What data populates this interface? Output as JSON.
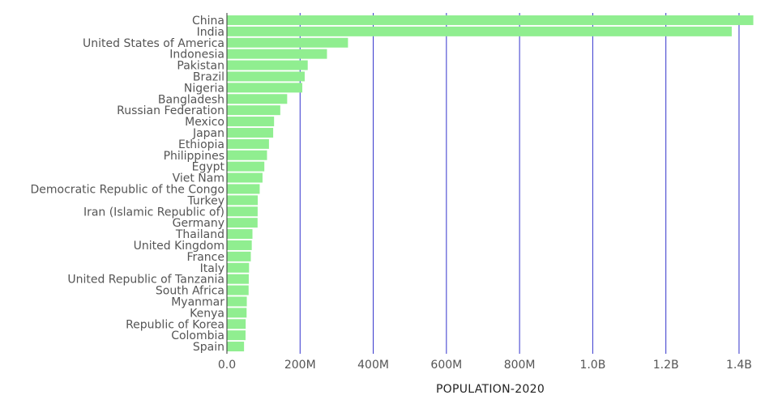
{
  "chart_data": {
    "type": "bar",
    "orientation": "horizontal",
    "title": "",
    "xlabel": "POPULATION-2020",
    "ylabel": "",
    "xlim": [
      0,
      1440000000
    ],
    "grid": true,
    "bar_color": "#90ee90",
    "grid_color": "#3333cc",
    "xticks": [
      {
        "value": 0,
        "label": "0.0"
      },
      {
        "value": 200000000,
        "label": "200M"
      },
      {
        "value": 400000000,
        "label": "400M"
      },
      {
        "value": 600000000,
        "label": "600M"
      },
      {
        "value": 800000000,
        "label": "800M"
      },
      {
        "value": 1000000000,
        "label": "1.0B"
      },
      {
        "value": 1200000000,
        "label": "1.2B"
      },
      {
        "value": 1400000000,
        "label": "1.4B"
      }
    ],
    "categories": [
      "China",
      "India",
      "United States of America",
      "Indonesia",
      "Pakistan",
      "Brazil",
      "Nigeria",
      "Bangladesh",
      "Russian Federation",
      "Mexico",
      "Japan",
      "Ethiopia",
      "Philippines",
      "Egypt",
      "Viet Nam",
      "Democratic Republic of the Congo",
      "Turkey",
      "Iran (Islamic Republic of)",
      "Germany",
      "Thailand",
      "United Kingdom",
      "France",
      "Italy",
      "United Republic of Tanzania",
      "South Africa",
      "Myanmar",
      "Kenya",
      "Republic of Korea",
      "Colombia",
      "Spain"
    ],
    "values": [
      1439000000,
      1380000000,
      331000000,
      273500000,
      220900000,
      212600000,
      206100000,
      164700000,
      145900000,
      128900000,
      126500000,
      115000000,
      109600000,
      102300000,
      97300000,
      89600000,
      84300000,
      84000000,
      83800000,
      69800000,
      67900000,
      65300000,
      60500000,
      59700000,
      59300000,
      54400000,
      53800000,
      51300000,
      50900000,
      46800000
    ]
  }
}
